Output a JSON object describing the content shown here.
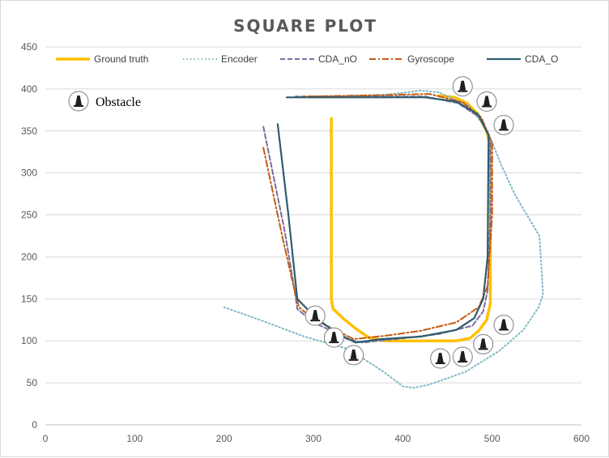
{
  "chart_data": {
    "type": "line",
    "title": "SQUARE PLOT",
    "xlabel": "",
    "ylabel": "",
    "xlim": [
      0,
      600
    ],
    "ylim": [
      0,
      450
    ],
    "xticks": [
      0,
      100,
      200,
      300,
      400,
      500,
      600
    ],
    "yticks": [
      0,
      50,
      100,
      150,
      200,
      250,
      300,
      350,
      400,
      450
    ],
    "grid": "horizontal",
    "legend_position": "top",
    "series": [
      {
        "name": "Ground truth",
        "color": "#FFC000",
        "style": "solid",
        "points": [
          [
            320,
            365
          ],
          [
            320,
            150
          ],
          [
            322,
            138
          ],
          [
            334,
            126
          ],
          [
            348,
            114
          ],
          [
            362,
            104
          ],
          [
            380,
            100
          ],
          [
            460,
            100
          ],
          [
            475,
            103
          ],
          [
            485,
            112
          ],
          [
            494,
            125
          ],
          [
            498,
            145
          ],
          [
            498,
            330
          ],
          [
            494,
            350
          ],
          [
            484,
            370
          ],
          [
            472,
            383
          ],
          [
            458,
            390
          ],
          [
            440,
            392
          ]
        ]
      },
      {
        "name": "Encoder",
        "color": "#7FB8C6",
        "style": "dotted",
        "points": [
          [
            200,
            140
          ],
          [
            240,
            125
          ],
          [
            290,
            105
          ],
          [
            340,
            90
          ],
          [
            380,
            62
          ],
          [
            400,
            46
          ],
          [
            412,
            44
          ],
          [
            430,
            48
          ],
          [
            470,
            63
          ],
          [
            508,
            88
          ],
          [
            535,
            113
          ],
          [
            552,
            140
          ],
          [
            557,
            155
          ],
          [
            553,
            225
          ],
          [
            540,
            248
          ],
          [
            525,
            275
          ],
          [
            510,
            310
          ],
          [
            495,
            350
          ],
          [
            474,
            380
          ],
          [
            440,
            396
          ],
          [
            420,
            398
          ],
          [
            380,
            393
          ],
          [
            340,
            392
          ],
          [
            310,
            391
          ]
        ]
      },
      {
        "name": "CDA_nO",
        "color": "#7A6E9E",
        "style": "dashed",
        "points": [
          [
            244,
            355
          ],
          [
            268,
            230
          ],
          [
            279,
            160
          ],
          [
            282,
            138
          ],
          [
            300,
            122
          ],
          [
            320,
            112
          ],
          [
            338,
            102
          ],
          [
            355,
            98
          ],
          [
            400,
            103
          ],
          [
            440,
            108
          ],
          [
            478,
            118
          ],
          [
            490,
            135
          ],
          [
            495,
            160
          ],
          [
            498,
            250
          ],
          [
            498,
            340
          ],
          [
            486,
            366
          ],
          [
            462,
            383
          ],
          [
            425,
            391
          ],
          [
            350,
            391
          ],
          [
            280,
            391
          ]
        ]
      },
      {
        "name": "Gyroscope",
        "color": "#C55A11",
        "style": "dashdot",
        "points": [
          [
            244,
            330
          ],
          [
            265,
            225
          ],
          [
            280,
            155
          ],
          [
            284,
            140
          ],
          [
            302,
            124
          ],
          [
            323,
            114
          ],
          [
            345,
            102
          ],
          [
            380,
            106
          ],
          [
            420,
            112
          ],
          [
            460,
            122
          ],
          [
            485,
            140
          ],
          [
            495,
            165
          ],
          [
            500,
            250
          ],
          [
            500,
            335
          ],
          [
            488,
            366
          ],
          [
            467,
            384
          ],
          [
            430,
            394
          ],
          [
            350,
            392
          ],
          [
            290,
            391
          ]
        ]
      },
      {
        "name": "CDA_O",
        "color": "#2E5C6E",
        "style": "solid",
        "points": [
          [
            260,
            358
          ],
          [
            272,
            250
          ],
          [
            282,
            150
          ],
          [
            302,
            128
          ],
          [
            325,
            110
          ],
          [
            347,
            98
          ],
          [
            375,
            102
          ],
          [
            420,
            105
          ],
          [
            460,
            113
          ],
          [
            480,
            127
          ],
          [
            490,
            150
          ],
          [
            495,
            200
          ],
          [
            496,
            345
          ],
          [
            484,
            370
          ],
          [
            460,
            385
          ],
          [
            425,
            390
          ],
          [
            350,
            390
          ],
          [
            270,
            390
          ]
        ]
      }
    ],
    "annotations": {
      "obstacle_label": "Obstacle",
      "obstacles": [
        [
          467,
          403
        ],
        [
          494,
          385
        ],
        [
          513,
          357
        ],
        [
          302,
          130
        ],
        [
          323,
          104
        ],
        [
          345,
          83
        ],
        [
          442,
          79
        ],
        [
          467,
          81
        ],
        [
          490,
          96
        ],
        [
          513,
          119
        ]
      ]
    }
  }
}
